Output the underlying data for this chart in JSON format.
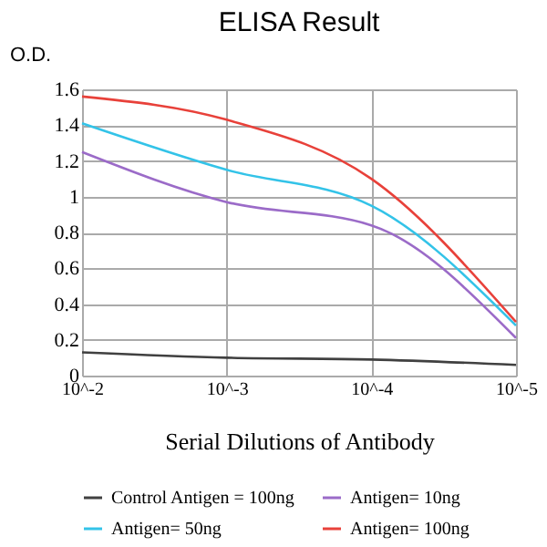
{
  "chart_data": {
    "type": "line",
    "title": "ELISA Result",
    "ylabel": "O.D.",
    "xlabel": "Serial Dilutions of Antibody",
    "categories": [
      "10^-2",
      "10^-3",
      "10^-4",
      "10^-5"
    ],
    "series": [
      {
        "name": "Control Antigen = 100ng",
        "color": "#404040",
        "values": [
          0.13,
          0.1,
          0.09,
          0.06
        ]
      },
      {
        "name": "Antigen= 10ng",
        "color": "#9b6bc8",
        "values": [
          1.25,
          0.97,
          0.84,
          0.21
        ]
      },
      {
        "name": "Antigen= 50ng",
        "color": "#33c3e8",
        "values": [
          1.41,
          1.15,
          0.95,
          0.28
        ]
      },
      {
        "name": "Antigen= 100ng",
        "color": "#e8413a",
        "values": [
          1.56,
          1.43,
          1.1,
          0.3
        ]
      }
    ],
    "ylim": [
      0,
      1.6
    ],
    "yticks": [
      0,
      0.2,
      0.4,
      0.6,
      0.8,
      1,
      1.2,
      1.4,
      1.6
    ],
    "grid": true,
    "legend": "bottom",
    "marker": "none",
    "line_style": "solid"
  }
}
